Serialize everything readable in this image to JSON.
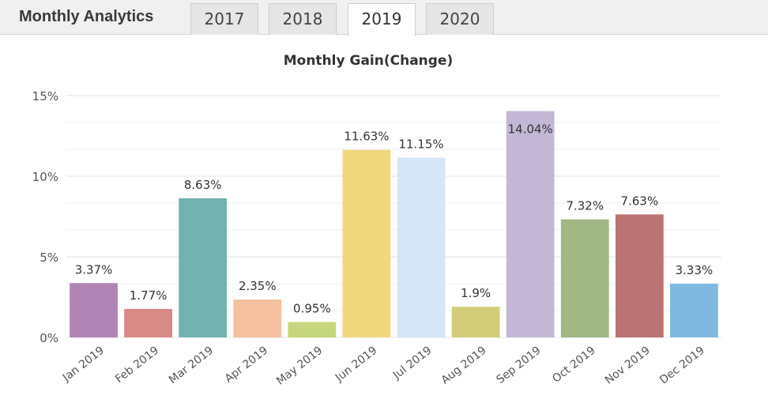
{
  "header": {
    "title": "Monthly Analytics",
    "tabs": [
      {
        "label": "2017",
        "active": false
      },
      {
        "label": "2018",
        "active": false
      },
      {
        "label": "2019",
        "active": true
      },
      {
        "label": "2020",
        "active": false
      }
    ]
  },
  "chart_data": {
    "type": "bar",
    "title": "Monthly Gain(Change)",
    "xlabel": "",
    "ylabel": "",
    "ylim": [
      0,
      15
    ],
    "yticks": [
      0,
      5,
      10,
      15
    ],
    "ytick_labels": [
      "0%",
      "5%",
      "10%",
      "15%"
    ],
    "grid": true,
    "legend": "none",
    "categories": [
      "Jan 2019",
      "Feb 2019",
      "Mar 2019",
      "Apr 2019",
      "May 2019",
      "Jun 2019",
      "Jul 2019",
      "Aug 2019",
      "Sep 2019",
      "Oct 2019",
      "Nov 2019",
      "Dec 2019"
    ],
    "values": [
      3.37,
      1.77,
      8.63,
      2.35,
      0.95,
      11.63,
      11.15,
      1.9,
      14.04,
      7.32,
      7.63,
      3.33
    ],
    "value_labels": [
      "3.37%",
      "1.77%",
      "8.63%",
      "2.35%",
      "0.95%",
      "11.63%",
      "11.15%",
      "1.9%",
      "14.04%",
      "7.32%",
      "7.63%",
      "3.33%"
    ],
    "colors": [
      "#b085b5",
      "#d98a86",
      "#72b2b0",
      "#f5c09e",
      "#c6d67c",
      "#f0d77e",
      "#d5e6f7",
      "#d3cd7a",
      "#c3b7d6",
      "#a1b784",
      "#bb7474",
      "#7fb9e2"
    ]
  }
}
